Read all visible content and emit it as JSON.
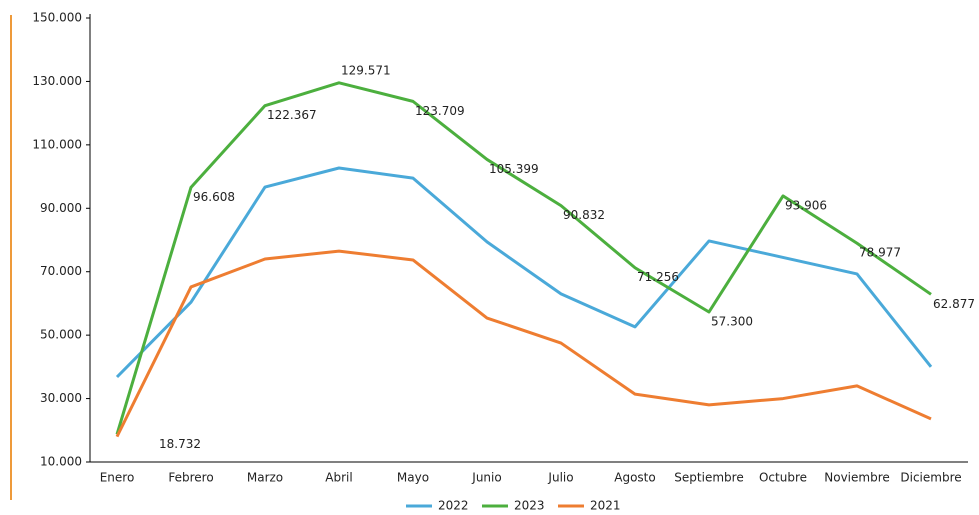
{
  "chart_data": {
    "type": "line",
    "categories": [
      "Enero",
      "Febrero",
      "Marzo",
      "Abril",
      "Mayo",
      "Junio",
      "Julio",
      "Agosto",
      "Septiembre",
      "Octubre",
      "Noviembre",
      "Diciembre"
    ],
    "series": [
      {
        "name": "2022",
        "color": "#4aa9d9",
        "values": [
          36800,
          60400,
          96700,
          102700,
          99500,
          79400,
          63000,
          52600,
          79700,
          74500,
          69300,
          40000
        ]
      },
      {
        "name": "2023",
        "color": "#4caf3e",
        "values": [
          18732,
          96608,
          122367,
          129571,
          123709,
          105399,
          90832,
          71256,
          57300,
          93906,
          78977,
          62877
        ],
        "value_labels": [
          "18.732",
          "96.608",
          "122.367",
          "129.571",
          "123.709",
          "105.399",
          "90.832",
          "71.256",
          "57.300",
          "93.906",
          "78.977",
          "62.877"
        ]
      },
      {
        "name": "2021",
        "color": "#ee7d31",
        "values": [
          18000,
          65200,
          74000,
          76500,
          73700,
          55400,
          47500,
          31400,
          28000,
          30000,
          34000,
          23600
        ]
      }
    ],
    "ylim": [
      10000,
      150000
    ],
    "yticks": [
      {
        "value": 10000,
        "label": "10.000"
      },
      {
        "value": 30000,
        "label": "30.000"
      },
      {
        "value": 50000,
        "label": "50.000"
      },
      {
        "value": 70000,
        "label": "70.000"
      },
      {
        "value": 90000,
        "label": "90.000"
      },
      {
        "value": 110000,
        "label": "110.000"
      },
      {
        "value": 130000,
        "label": "130.000"
      },
      {
        "value": 150000,
        "label": "150.000"
      }
    ],
    "legend": "bottom"
  }
}
